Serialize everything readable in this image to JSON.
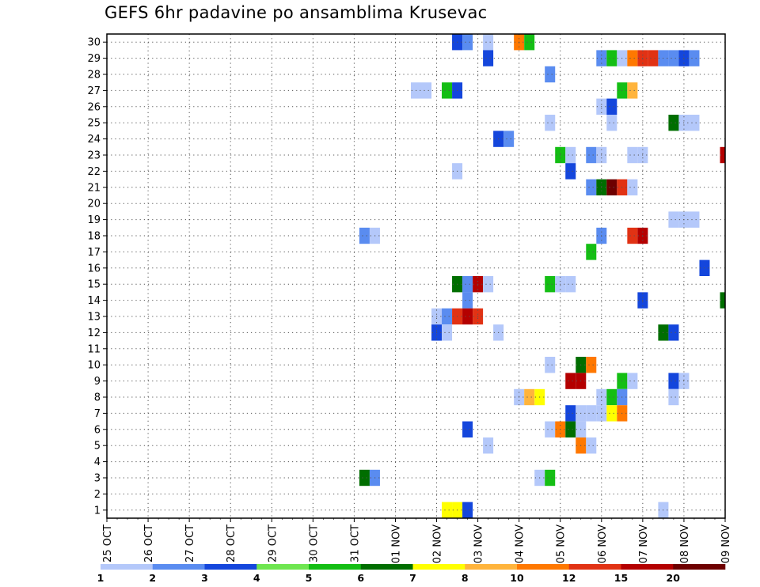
{
  "chart_data": {
    "type": "heatmap",
    "title": "GEFS 6hr padavine po ansamblima Krusevac",
    "xlabel": "",
    "ylabel": "",
    "x_ticks": [
      "25 OCT",
      "26 OCT",
      "27 OCT",
      "28 OCT",
      "29 OCT",
      "30 OCT",
      "31 OCT",
      "01 NOV",
      "02 NOV",
      "03 NOV",
      "04 NOV",
      "05 NOV",
      "06 NOV",
      "07 NOV",
      "08 NOV",
      "09 NOV"
    ],
    "x_unit": "6-hour steps from 25 OCT 00Z",
    "xlim": [
      0,
      60
    ],
    "y_ticks": [
      1,
      2,
      3,
      4,
      5,
      6,
      7,
      8,
      9,
      10,
      11,
      12,
      13,
      14,
      15,
      16,
      17,
      18,
      19,
      20,
      21,
      22,
      23,
      24,
      25,
      26,
      27,
      28,
      29,
      30
    ],
    "ylim": [
      0.5,
      30.5
    ],
    "grid": true,
    "colorbar": {
      "labels": [
        "1",
        "2",
        "3",
        "4",
        "5",
        "6",
        "7",
        "8",
        "10",
        "12",
        "15",
        "20"
      ],
      "colors": [
        "#b4c8fa",
        "#5a8cf0",
        "#1446dc",
        "#6ee650",
        "#14be14",
        "#006e00",
        "#ffff00",
        "#ffb43c",
        "#ff7800",
        "#e13214",
        "#b40000",
        "#6e0000"
      ]
    },
    "cells": [
      [
        34,
        30,
        3
      ],
      [
        35,
        30,
        2
      ],
      [
        37,
        30,
        1
      ],
      [
        40,
        30,
        10
      ],
      [
        41,
        30,
        5
      ],
      [
        37,
        29,
        3
      ],
      [
        48,
        29,
        2
      ],
      [
        49,
        29,
        5
      ],
      [
        50,
        29,
        1
      ],
      [
        51,
        29,
        10
      ],
      [
        52,
        29,
        12
      ],
      [
        53,
        29,
        12
      ],
      [
        54,
        29,
        2
      ],
      [
        55,
        29,
        2
      ],
      [
        56,
        29,
        3
      ],
      [
        57,
        29,
        2
      ],
      [
        43,
        28,
        2
      ],
      [
        30,
        27,
        1
      ],
      [
        31,
        27,
        1
      ],
      [
        33,
        27,
        5
      ],
      [
        34,
        27,
        3
      ],
      [
        50,
        27,
        5
      ],
      [
        51,
        27,
        8
      ],
      [
        48,
        26,
        1
      ],
      [
        49,
        26,
        3
      ],
      [
        43,
        25,
        1
      ],
      [
        49,
        25,
        1
      ],
      [
        55,
        25,
        6
      ],
      [
        56,
        25,
        1
      ],
      [
        57,
        25,
        1
      ],
      [
        38,
        24,
        3
      ],
      [
        39,
        24,
        2
      ],
      [
        44,
        23,
        5
      ],
      [
        45,
        23,
        1
      ],
      [
        47,
        23,
        2
      ],
      [
        48,
        23,
        1
      ],
      [
        51,
        23,
        1
      ],
      [
        52,
        23,
        1
      ],
      [
        60,
        23,
        15
      ],
      [
        34,
        22,
        1
      ],
      [
        45,
        22,
        3
      ],
      [
        47,
        21,
        2
      ],
      [
        48,
        21,
        6
      ],
      [
        49,
        21,
        20
      ],
      [
        50,
        21,
        12
      ],
      [
        51,
        21,
        1
      ],
      [
        55,
        19,
        1
      ],
      [
        56,
        19,
        1
      ],
      [
        57,
        19,
        1
      ],
      [
        25,
        18,
        2
      ],
      [
        26,
        18,
        1
      ],
      [
        48,
        18,
        2
      ],
      [
        51,
        18,
        12
      ],
      [
        52,
        18,
        15
      ],
      [
        47,
        17,
        5
      ],
      [
        58,
        16,
        3
      ],
      [
        34,
        15,
        6
      ],
      [
        35,
        15,
        2
      ],
      [
        36,
        15,
        15
      ],
      [
        37,
        15,
        1
      ],
      [
        43,
        15,
        5
      ],
      [
        44,
        15,
        1
      ],
      [
        45,
        15,
        1
      ],
      [
        35,
        14,
        2
      ],
      [
        52,
        14,
        3
      ],
      [
        60,
        14,
        6
      ],
      [
        32,
        13,
        1
      ],
      [
        33,
        13,
        2
      ],
      [
        34,
        13,
        12
      ],
      [
        35,
        13,
        15
      ],
      [
        36,
        13,
        12
      ],
      [
        32,
        12,
        3
      ],
      [
        33,
        12,
        1
      ],
      [
        38,
        12,
        1
      ],
      [
        54,
        12,
        6
      ],
      [
        55,
        12,
        3
      ],
      [
        43,
        10,
        1
      ],
      [
        46,
        10,
        6
      ],
      [
        47,
        10,
        10
      ],
      [
        45,
        9,
        15
      ],
      [
        46,
        9,
        15
      ],
      [
        50,
        9,
        5
      ],
      [
        51,
        9,
        1
      ],
      [
        55,
        9,
        3
      ],
      [
        56,
        9,
        1
      ],
      [
        40,
        8,
        1
      ],
      [
        41,
        8,
        8
      ],
      [
        42,
        8,
        7
      ],
      [
        48,
        8,
        1
      ],
      [
        49,
        8,
        5
      ],
      [
        50,
        8,
        2
      ],
      [
        55,
        8,
        1
      ],
      [
        45,
        7,
        3
      ],
      [
        46,
        7,
        1
      ],
      [
        47,
        7,
        1
      ],
      [
        48,
        7,
        1
      ],
      [
        49,
        7,
        7
      ],
      [
        50,
        7,
        10
      ],
      [
        35,
        6,
        3
      ],
      [
        43,
        6,
        1
      ],
      [
        44,
        6,
        10
      ],
      [
        45,
        6,
        6
      ],
      [
        46,
        6,
        1
      ],
      [
        37,
        5,
        1
      ],
      [
        46,
        5,
        10
      ],
      [
        47,
        5,
        1
      ],
      [
        25,
        3,
        6
      ],
      [
        26,
        3,
        2
      ],
      [
        42,
        3,
        1
      ],
      [
        43,
        3,
        5
      ],
      [
        33,
        1,
        7
      ],
      [
        34,
        1,
        7
      ],
      [
        35,
        1,
        3
      ],
      [
        54,
        1,
        1
      ]
    ]
  }
}
